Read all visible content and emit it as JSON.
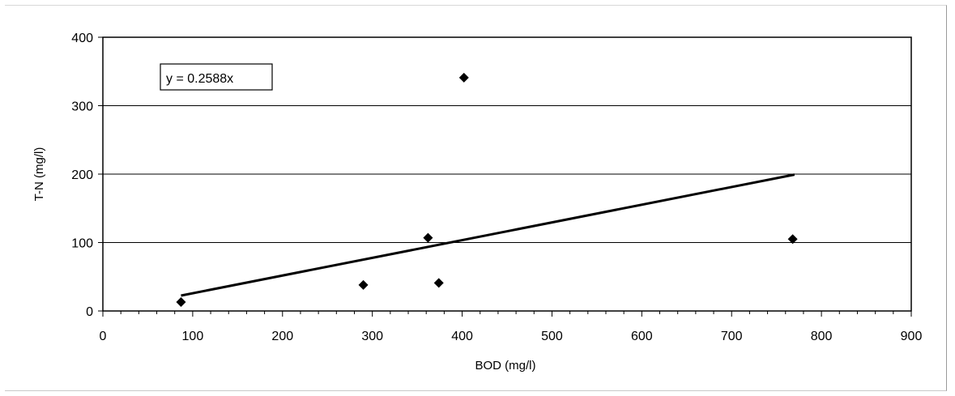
{
  "chart_data": {
    "type": "scatter",
    "xlabel": "BOD (mg/l)",
    "ylabel": "T-N (mg/l)",
    "xlim": [
      0,
      900
    ],
    "ylim": [
      0,
      400
    ],
    "x_ticks": [
      0,
      100,
      200,
      300,
      400,
      500,
      600,
      700,
      800,
      900
    ],
    "y_ticks": [
      0,
      100,
      200,
      300,
      400
    ],
    "grid": "horizontal",
    "points": [
      {
        "x": 87,
        "y": 13
      },
      {
        "x": 290,
        "y": 38
      },
      {
        "x": 362,
        "y": 107
      },
      {
        "x": 374,
        "y": 41
      },
      {
        "x": 402,
        "y": 341
      },
      {
        "x": 768,
        "y": 105
      }
    ],
    "trendline": {
      "type": "linear-through-origin",
      "slope": 0.2588,
      "x_range": [
        87,
        770
      ],
      "equation": "y = 0.2588x"
    },
    "colors": {
      "marker": "#000000",
      "line": "#000000",
      "grid": "#000000"
    }
  }
}
